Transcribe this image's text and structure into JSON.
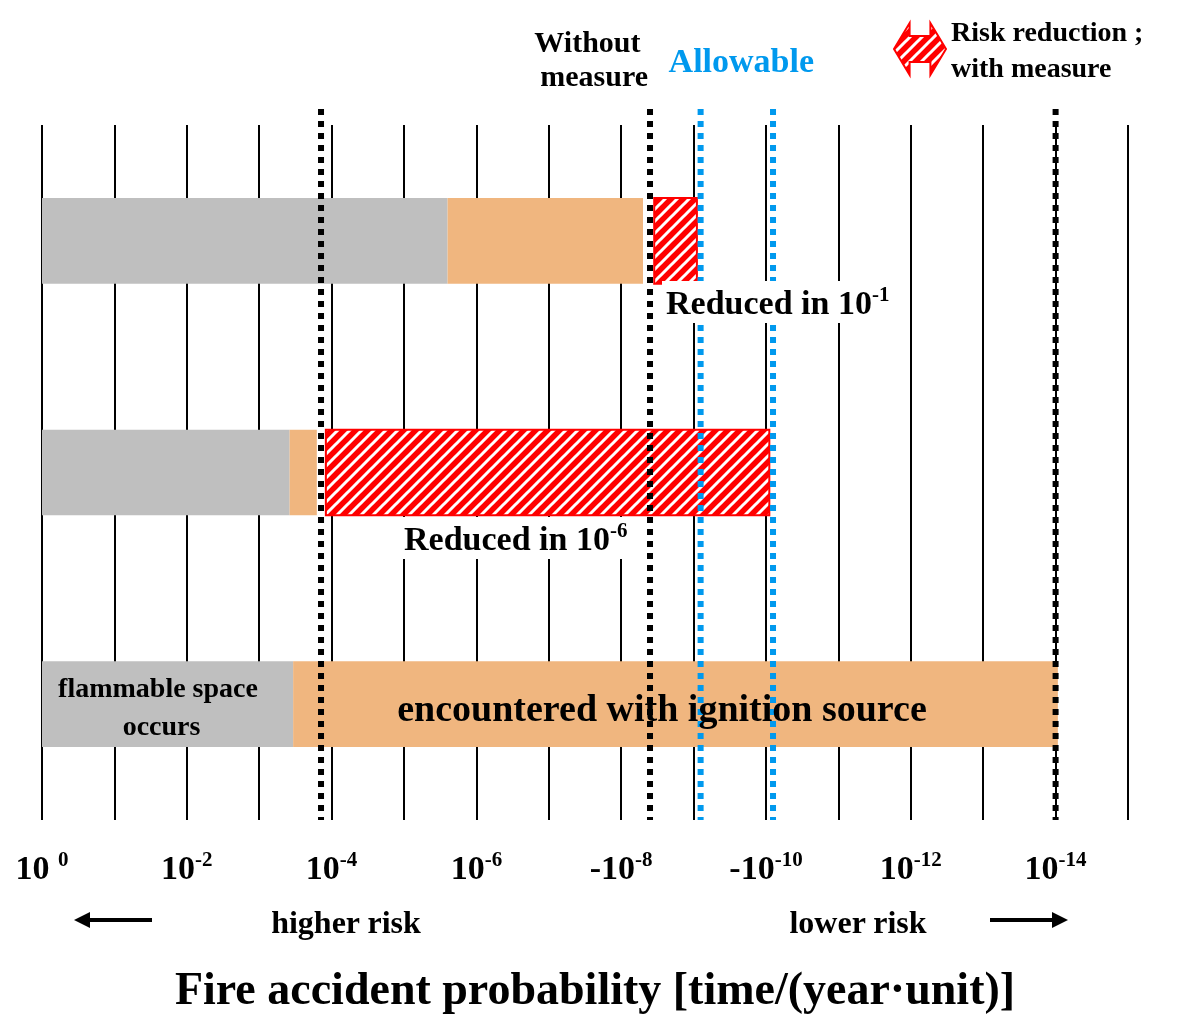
{
  "chart_data": {
    "type": "bar",
    "orientation": "horizontal",
    "xlabel": "Fire accident probability [time/(year·unit)]",
    "categories": [
      null,
      null,
      null
    ],
    "series": [
      {
        "color": "#bfbfbf",
        "base": [
          2.5e-06,
          0.00038,
          0.00034
        ],
        "values": [
          0.9999975,
          0.99962,
          0.99966
        ]
      },
      {
        "color": "#f0b67f",
        "base": [
          5e-09,
          0.00016,
          9.3e-15
        ],
        "values": [
          2.495e-06,
          0.00022,
          0.00034
        ]
      },
      {
        "name": "Risk reduction ; with measure",
        "color": "#ff0000",
        "base": [
          9e-10,
          9e-11,
          null
        ],
        "values": [
          2.6e-09,
          0.00012,
          null
        ]
      }
    ],
    "log": "x",
    "xlim": [
      1,
      1e-15
    ],
    "xticks": [
      {
        "value": 1,
        "label": "10 $^{0}$"
      },
      {
        "value": 0.1,
        "label": null
      },
      {
        "value": 0.01,
        "label": "10$^{-2}$"
      },
      {
        "value": 0.001,
        "label": null
      },
      {
        "value": 0.0001,
        "label": "10$^{-4}$"
      },
      {
        "value": 1e-05,
        "label": null
      },
      {
        "value": 1e-06,
        "label": "10$^{-6}$"
      },
      {
        "value": 1e-07,
        "label": null
      },
      {
        "value": 1e-08,
        "label": "-10$^{-8}$"
      },
      {
        "value": 1e-09,
        "label": null
      },
      {
        "value": 1e-10,
        "label": "-10$^{-10}$"
      },
      {
        "value": 1e-11,
        "label": null
      },
      {
        "value": 1e-12,
        "label": "10$^{-12}$"
      },
      {
        "value": 1e-13,
        "label": null
      },
      {
        "value": 1e-14,
        "label": "10$^{-14}$"
      },
      {
        "value": 1e-15,
        "label": null
      }
    ],
    "grid": "x",
    "legend": "top right",
    "ref_lines": [
      {
        "axis": "x",
        "value": 4e-09,
        "label": "Without measure",
        "color": "#000000",
        "line_style": "dotted"
      },
      {
        "axis": "x",
        "value": 8e-10,
        "label": "Allowable",
        "color": "#0099ee",
        "line_style": "dotted"
      },
      {
        "axis": "x",
        "value": 0.00014,
        "label": null,
        "color": "#000000",
        "line_style": "dotted"
      },
      {
        "axis": "x",
        "value": 8e-11,
        "label": null,
        "color": "#0099ee",
        "line_style": "dotted"
      },
      {
        "axis": "x",
        "value": 1e-14,
        "label": null,
        "color": "#000000",
        "line_style": "dotted"
      }
    ],
    "annotations": [
      "Reduced in 10$^{-1}$",
      "Reduced in 10$^{-6}$",
      "flammable space occurs",
      "encountered with ignition source",
      "higher risk",
      "lower risk"
    ]
  }
}
